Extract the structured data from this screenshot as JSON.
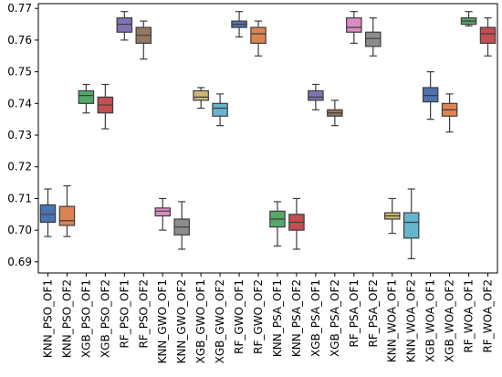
{
  "chart_data": {
    "type": "box",
    "title": "",
    "xlabel": "",
    "ylabel": "",
    "ylim": [
      0.6865,
      0.7715
    ],
    "yticks": [
      0.69,
      0.7,
      0.71,
      0.72,
      0.73,
      0.74,
      0.75,
      0.76,
      0.77
    ],
    "ytick_labels": [
      "0.69",
      "0.70",
      "0.71",
      "0.72",
      "0.73",
      "0.74",
      "0.75",
      "0.76",
      "0.77"
    ],
    "grid": false,
    "legend": "none",
    "categories": [
      "KNN_PSO_OF1",
      "KNN_PSO_OF2",
      "XGB_PSO_OF1",
      "XGB_PSO_OF2",
      "RF_PSO_OF1",
      "RF_PSO_OF2",
      "KNN_GWO_OF1",
      "KNN_GWO_OF2",
      "XGB_GWO_OF1",
      "XGB_GWO_OF2",
      "RF_GWO_OF1",
      "RF_GWO_OF2",
      "KNN_PSA_OF1",
      "KNN_PSA_OF2",
      "XGB_PSA_OF1",
      "XGB_PSA_OF2",
      "RF_PSA_OF1",
      "RF_PSA_OF2",
      "KNN_WOA_OF1",
      "KNN_WOA_OF2",
      "XGB_WOA_OF1",
      "XGB_WOA_OF2",
      "RF_WOA_OF1",
      "RF_WOA_OF2"
    ],
    "boxes": [
      {
        "whislo": 0.698,
        "q1": 0.7025,
        "med": 0.705,
        "q3": 0.708,
        "whishi": 0.713
      },
      {
        "whislo": 0.698,
        "q1": 0.7015,
        "med": 0.703,
        "q3": 0.7075,
        "whishi": 0.714
      },
      {
        "whislo": 0.737,
        "q1": 0.74,
        "med": 0.7425,
        "q3": 0.744,
        "whishi": 0.746
      },
      {
        "whislo": 0.732,
        "q1": 0.737,
        "med": 0.7395,
        "q3": 0.742,
        "whishi": 0.746
      },
      {
        "whislo": 0.76,
        "q1": 0.7625,
        "med": 0.765,
        "q3": 0.767,
        "whishi": 0.769
      },
      {
        "whislo": 0.754,
        "q1": 0.759,
        "med": 0.7615,
        "q3": 0.764,
        "whishi": 0.766
      },
      {
        "whislo": 0.7,
        "q1": 0.7045,
        "med": 0.706,
        "q3": 0.707,
        "whishi": 0.71
      },
      {
        "whislo": 0.694,
        "q1": 0.6985,
        "med": 0.701,
        "q3": 0.7035,
        "whishi": 0.709
      },
      {
        "whislo": 0.7385,
        "q1": 0.741,
        "med": 0.742,
        "q3": 0.744,
        "whishi": 0.745
      },
      {
        "whislo": 0.733,
        "q1": 0.736,
        "med": 0.7385,
        "q3": 0.74,
        "whishi": 0.743
      },
      {
        "whislo": 0.761,
        "q1": 0.764,
        "med": 0.765,
        "q3": 0.766,
        "whishi": 0.769
      },
      {
        "whislo": 0.755,
        "q1": 0.759,
        "med": 0.762,
        "q3": 0.764,
        "whishi": 0.766
      },
      {
        "whislo": 0.695,
        "q1": 0.701,
        "med": 0.7035,
        "q3": 0.706,
        "whishi": 0.709
      },
      {
        "whislo": 0.694,
        "q1": 0.7,
        "med": 0.7025,
        "q3": 0.705,
        "whishi": 0.71
      },
      {
        "whislo": 0.738,
        "q1": 0.741,
        "med": 0.742,
        "q3": 0.744,
        "whishi": 0.746
      },
      {
        "whislo": 0.733,
        "q1": 0.736,
        "med": 0.737,
        "q3": 0.738,
        "whishi": 0.741
      },
      {
        "whislo": 0.759,
        "q1": 0.7625,
        "med": 0.764,
        "q3": 0.767,
        "whishi": 0.769
      },
      {
        "whislo": 0.755,
        "q1": 0.758,
        "med": 0.7605,
        "q3": 0.7625,
        "whishi": 0.767
      },
      {
        "whislo": 0.699,
        "q1": 0.7035,
        "med": 0.7045,
        "q3": 0.7055,
        "whishi": 0.71
      },
      {
        "whislo": 0.691,
        "q1": 0.6975,
        "med": 0.7025,
        "q3": 0.7055,
        "whishi": 0.713
      },
      {
        "whislo": 0.735,
        "q1": 0.7405,
        "med": 0.7425,
        "q3": 0.745,
        "whishi": 0.75
      },
      {
        "whislo": 0.731,
        "q1": 0.736,
        "med": 0.738,
        "q3": 0.74,
        "whishi": 0.743
      },
      {
        "whislo": 0.7645,
        "q1": 0.765,
        "med": 0.766,
        "q3": 0.767,
        "whishi": 0.769
      },
      {
        "whislo": 0.755,
        "q1": 0.759,
        "med": 0.762,
        "q3": 0.764,
        "whishi": 0.767
      }
    ],
    "colors": [
      "#4c72b0",
      "#dd8452",
      "#55a868",
      "#c44e52",
      "#8172b3",
      "#937860",
      "#da8bc3",
      "#8c8c8c",
      "#ccb974",
      "#64b5cd",
      "#4c72b0",
      "#dd8452",
      "#55a868",
      "#c44e52",
      "#8172b3",
      "#937860",
      "#da8bc3",
      "#8c8c8c",
      "#ccb974",
      "#64b5cd",
      "#4c72b0",
      "#dd8452",
      "#55a868",
      "#c44e52"
    ],
    "line_color": "#3d3d3d"
  }
}
